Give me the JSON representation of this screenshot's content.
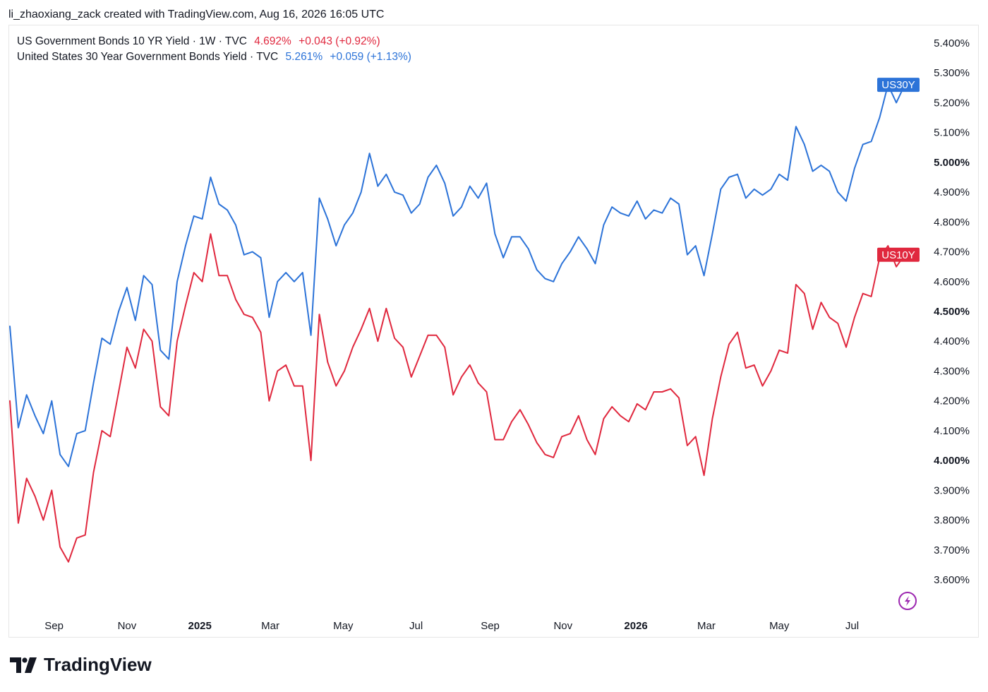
{
  "header": {
    "attribution": "li_zhaoxiang_zack created with TradingView.com, Aug 16, 2026 16:05 UTC"
  },
  "legend": [
    {
      "name": "US Government Bonds 10 YR Yield · 1W · TVC",
      "value": "4.692%",
      "change": "+0.043 (+0.92%)",
      "color": "#e0283e"
    },
    {
      "name": "United States 30 Year Government Bonds Yield · TVC",
      "value": "5.261%",
      "change": "+0.059 (+1.13%)",
      "color": "#2c73d8"
    }
  ],
  "logo": {
    "text": "TradingView"
  },
  "chart_data": {
    "type": "line",
    "x": [
      "2024-07-26",
      "2024-08-02",
      "2024-08-09",
      "2024-08-16",
      "2024-08-23",
      "2024-08-30",
      "2024-09-06",
      "2024-09-13",
      "2024-09-20",
      "2024-09-27",
      "2024-10-04",
      "2024-10-11",
      "2024-10-18",
      "2024-10-25",
      "2024-11-01",
      "2024-11-08",
      "2024-11-15",
      "2024-11-22",
      "2024-11-29",
      "2024-12-06",
      "2024-12-13",
      "2024-12-20",
      "2024-12-27",
      "2025-01-03",
      "2025-01-10",
      "2025-01-17",
      "2025-01-24",
      "2025-01-31",
      "2025-02-07",
      "2025-02-14",
      "2025-02-21",
      "2025-02-28",
      "2025-03-07",
      "2025-03-14",
      "2025-03-21",
      "2025-03-28",
      "2025-04-04",
      "2025-04-11",
      "2025-04-18",
      "2025-04-25",
      "2025-05-02",
      "2025-05-09",
      "2025-05-16",
      "2025-05-23",
      "2025-05-30",
      "2025-06-06",
      "2025-06-13",
      "2025-06-20",
      "2025-06-27",
      "2025-07-04",
      "2025-07-11",
      "2025-07-18",
      "2025-07-25",
      "2025-08-01",
      "2025-08-08",
      "2025-08-15",
      "2025-08-22",
      "2025-08-29",
      "2025-09-05",
      "2025-09-12",
      "2025-09-19",
      "2025-09-26",
      "2025-10-03",
      "2025-10-10",
      "2025-10-17",
      "2025-10-24",
      "2025-10-31",
      "2025-11-07",
      "2025-11-14",
      "2025-11-21",
      "2025-11-28",
      "2025-12-05",
      "2025-12-12",
      "2025-12-19",
      "2025-12-26",
      "2026-01-02",
      "2026-01-09",
      "2026-01-16",
      "2026-01-23",
      "2026-01-30",
      "2026-02-06",
      "2026-02-13",
      "2026-02-20",
      "2026-02-27",
      "2026-03-06",
      "2026-03-13",
      "2026-03-20",
      "2026-03-27",
      "2026-04-03",
      "2026-04-10",
      "2026-04-17",
      "2026-04-24",
      "2026-05-01",
      "2026-05-08",
      "2026-05-15",
      "2026-05-22",
      "2026-05-29",
      "2026-06-05",
      "2026-06-12",
      "2026-06-19",
      "2026-06-26",
      "2026-07-03",
      "2026-07-10",
      "2026-07-17",
      "2026-07-24",
      "2026-07-31",
      "2026-08-07",
      "2026-08-14"
    ],
    "series": [
      {
        "name": "US10Y",
        "color": "#e0283e",
        "values": [
          4.2,
          3.79,
          3.94,
          3.88,
          3.8,
          3.9,
          3.71,
          3.66,
          3.74,
          3.75,
          3.96,
          4.1,
          4.08,
          4.23,
          4.38,
          4.31,
          4.44,
          4.4,
          4.18,
          4.15,
          4.4,
          4.52,
          4.63,
          4.6,
          4.76,
          4.62,
          4.62,
          4.54,
          4.49,
          4.48,
          4.43,
          4.2,
          4.3,
          4.32,
          4.25,
          4.25,
          4.0,
          4.49,
          4.33,
          4.25,
          4.3,
          4.38,
          4.44,
          4.51,
          4.4,
          4.51,
          4.41,
          4.38,
          4.28,
          4.35,
          4.42,
          4.42,
          4.38,
          4.22,
          4.28,
          4.32,
          4.26,
          4.23,
          4.07,
          4.07,
          4.13,
          4.17,
          4.12,
          4.06,
          4.02,
          4.01,
          4.08,
          4.09,
          4.15,
          4.07,
          4.02,
          4.14,
          4.18,
          4.15,
          4.13,
          4.19,
          4.17,
          4.23,
          4.23,
          4.24,
          4.21,
          4.05,
          4.08,
          3.95,
          4.14,
          4.28,
          4.39,
          4.43,
          4.31,
          4.32,
          4.25,
          4.3,
          4.37,
          4.36,
          4.59,
          4.56,
          4.44,
          4.53,
          4.48,
          4.46,
          4.38,
          4.48,
          4.56,
          4.55,
          4.68,
          4.72,
          4.65,
          4.69
        ]
      },
      {
        "name": "US30Y",
        "color": "#2c73d8",
        "values": [
          4.45,
          4.11,
          4.22,
          4.15,
          4.09,
          4.2,
          4.02,
          3.98,
          4.09,
          4.1,
          4.26,
          4.41,
          4.39,
          4.5,
          4.58,
          4.47,
          4.62,
          4.59,
          4.37,
          4.34,
          4.6,
          4.72,
          4.82,
          4.81,
          4.95,
          4.86,
          4.84,
          4.79,
          4.69,
          4.7,
          4.68,
          4.48,
          4.6,
          4.63,
          4.6,
          4.63,
          4.42,
          4.88,
          4.81,
          4.72,
          4.79,
          4.83,
          4.9,
          5.03,
          4.92,
          4.96,
          4.9,
          4.89,
          4.83,
          4.86,
          4.95,
          4.99,
          4.93,
          4.82,
          4.85,
          4.92,
          4.88,
          4.93,
          4.76,
          4.68,
          4.75,
          4.75,
          4.71,
          4.64,
          4.61,
          4.6,
          4.66,
          4.7,
          4.75,
          4.71,
          4.66,
          4.79,
          4.85,
          4.83,
          4.82,
          4.87,
          4.81,
          4.84,
          4.83,
          4.88,
          4.86,
          4.69,
          4.72,
          4.62,
          4.76,
          4.91,
          4.95,
          4.96,
          4.88,
          4.91,
          4.89,
          4.91,
          4.96,
          4.94,
          5.12,
          5.06,
          4.97,
          4.99,
          4.97,
          4.9,
          4.87,
          4.98,
          5.06,
          5.07,
          5.15,
          5.26,
          5.2,
          5.26
        ]
      }
    ],
    "ylim": [
      3.5,
      5.45
    ],
    "yticks": [
      "5.400%",
      "5.300%",
      "5.200%",
      "5.100%",
      "5.000%",
      "4.900%",
      "4.800%",
      "4.700%",
      "4.600%",
      "4.500%",
      "4.400%",
      "4.300%",
      "4.200%",
      "4.100%",
      "4.000%",
      "3.900%",
      "3.800%",
      "3.700%",
      "3.600%"
    ],
    "ytick_values": [
      5.4,
      5.3,
      5.2,
      5.1,
      5.0,
      4.9,
      4.8,
      4.7,
      4.6,
      4.5,
      4.4,
      4.3,
      4.2,
      4.1,
      4.0,
      3.9,
      3.8,
      3.7,
      3.6
    ],
    "xticks": [
      {
        "label": "Sep",
        "date": "2024-09-01"
      },
      {
        "label": "Nov",
        "date": "2024-11-01"
      },
      {
        "label": "2025",
        "date": "2025-01-01"
      },
      {
        "label": "Mar",
        "date": "2025-03-01"
      },
      {
        "label": "May",
        "date": "2025-05-01"
      },
      {
        "label": "Jul",
        "date": "2025-07-01"
      },
      {
        "label": "Sep",
        "date": "2025-09-01"
      },
      {
        "label": "Nov",
        "date": "2025-11-01"
      },
      {
        "label": "2026",
        "date": "2026-01-01"
      },
      {
        "label": "Mar",
        "date": "2026-03-01"
      },
      {
        "label": "May",
        "date": "2026-05-01"
      },
      {
        "label": "Jul",
        "date": "2026-07-01"
      }
    ],
    "grid": false,
    "title": "",
    "xlabel": "",
    "ylabel": ""
  }
}
